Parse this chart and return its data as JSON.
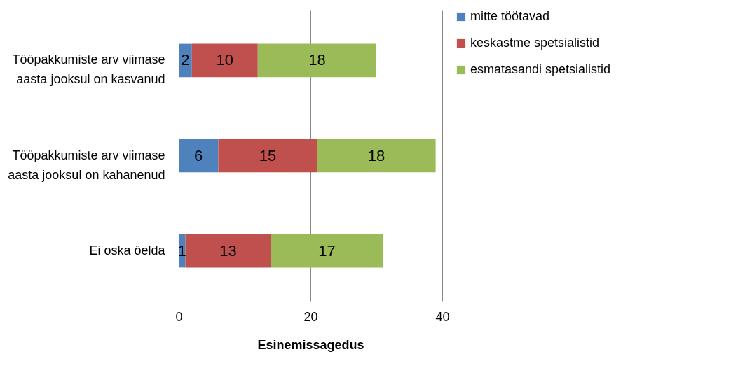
{
  "chart_data": {
    "type": "bar",
    "orientation": "horizontal",
    "stacked": true,
    "categories": [
      "Tööpakkumiste arv viimase aasta jooksul on kasvanud",
      "Tööpakkumiste arv viimase aasta jooksul on kahanenud",
      "Ei oska öelda"
    ],
    "series": [
      {
        "name": "mitte töötavad",
        "color": "#4f81bd",
        "values": [
          2,
          6,
          1
        ]
      },
      {
        "name": "keskastme spetsialistid",
        "color": "#c0504d",
        "values": [
          10,
          15,
          13
        ]
      },
      {
        "name": "esmatasandi spetsialistid",
        "color": "#9bbb59",
        "values": [
          18,
          18,
          17
        ]
      }
    ],
    "xlim": [
      0,
      40
    ],
    "xticks": [
      0,
      20,
      40
    ],
    "xlabel": "Esinemissagedus",
    "grid": "x",
    "legend": "right",
    "data_labels": true
  }
}
